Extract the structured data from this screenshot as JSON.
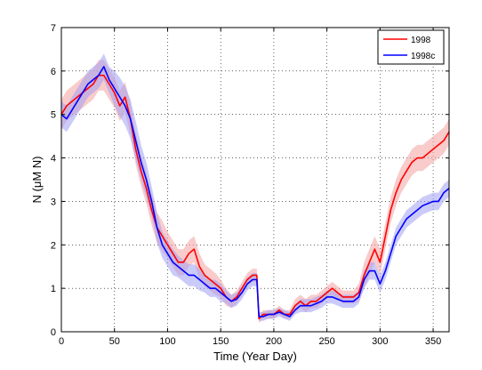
{
  "chart_data": {
    "type": "line",
    "title": "",
    "xlabel": "Time (Year Day)",
    "ylabel": "N (μM N)",
    "xlim": [
      0,
      365
    ],
    "ylim": [
      0,
      7
    ],
    "xticks": [
      "0",
      "50",
      "100",
      "150",
      "200",
      "250",
      "300",
      "350"
    ],
    "yticks": [
      "0",
      "1",
      "2",
      "3",
      "4",
      "5",
      "6",
      "7"
    ],
    "grid": true,
    "legend_position": "top-right",
    "series": [
      {
        "name": "1998",
        "color": "#ff0000",
        "band_color": "#f4a0a0",
        "x": [
          0,
          5,
          10,
          15,
          20,
          25,
          30,
          35,
          40,
          45,
          50,
          55,
          60,
          65,
          70,
          75,
          80,
          85,
          90,
          95,
          100,
          105,
          110,
          115,
          120,
          125,
          130,
          135,
          140,
          145,
          150,
          155,
          160,
          165,
          170,
          175,
          180,
          184,
          186,
          190,
          195,
          200,
          205,
          210,
          215,
          220,
          225,
          230,
          235,
          240,
          245,
          250,
          255,
          260,
          265,
          270,
          275,
          280,
          285,
          290,
          295,
          300,
          305,
          310,
          315,
          320,
          325,
          330,
          335,
          340,
          345,
          350,
          355,
          360,
          365
        ],
        "values": [
          5.0,
          5.2,
          5.3,
          5.4,
          5.5,
          5.6,
          5.7,
          5.9,
          5.9,
          5.7,
          5.5,
          5.2,
          5.4,
          4.9,
          4.2,
          3.7,
          3.3,
          2.8,
          2.4,
          2.2,
          2.0,
          1.8,
          1.6,
          1.6,
          1.8,
          1.9,
          1.5,
          1.3,
          1.2,
          1.1,
          1.0,
          0.8,
          0.7,
          0.8,
          1.0,
          1.2,
          1.3,
          1.3,
          0.3,
          0.4,
          0.4,
          0.4,
          0.5,
          0.4,
          0.4,
          0.6,
          0.7,
          0.6,
          0.7,
          0.7,
          0.8,
          0.9,
          1.0,
          0.9,
          0.8,
          0.8,
          0.8,
          0.9,
          1.3,
          1.6,
          1.9,
          1.6,
          2.2,
          2.8,
          3.2,
          3.5,
          3.7,
          3.9,
          4.0,
          4.0,
          4.1,
          4.2,
          4.3,
          4.4,
          4.6
        ],
        "band": [
          0.35,
          0.35,
          0.35,
          0.35,
          0.35,
          0.35,
          0.35,
          0.35,
          0.35,
          0.35,
          0.35,
          0.35,
          0.35,
          0.35,
          0.35,
          0.35,
          0.35,
          0.35,
          0.35,
          0.35,
          0.3,
          0.3,
          0.3,
          0.3,
          0.3,
          0.3,
          0.3,
          0.25,
          0.25,
          0.25,
          0.2,
          0.2,
          0.15,
          0.15,
          0.15,
          0.15,
          0.15,
          0.15,
          0.1,
          0.1,
          0.1,
          0.1,
          0.1,
          0.1,
          0.1,
          0.15,
          0.15,
          0.15,
          0.15,
          0.15,
          0.15,
          0.15,
          0.15,
          0.15,
          0.15,
          0.15,
          0.15,
          0.2,
          0.3,
          0.3,
          0.3,
          0.3,
          0.3,
          0.3,
          0.3,
          0.3,
          0.3,
          0.3,
          0.3,
          0.3,
          0.3,
          0.3,
          0.3,
          0.3,
          0.3
        ]
      },
      {
        "name": "1998c",
        "color": "#0000ff",
        "band_color": "#a0a0f4",
        "x": [
          0,
          5,
          10,
          15,
          20,
          25,
          30,
          35,
          40,
          45,
          50,
          55,
          60,
          65,
          70,
          75,
          80,
          85,
          90,
          95,
          100,
          105,
          110,
          115,
          120,
          125,
          130,
          135,
          140,
          145,
          150,
          155,
          160,
          165,
          170,
          175,
          180,
          184,
          186,
          190,
          195,
          200,
          205,
          210,
          215,
          220,
          225,
          230,
          235,
          240,
          245,
          250,
          255,
          260,
          265,
          270,
          275,
          280,
          285,
          290,
          295,
          300,
          305,
          310,
          315,
          320,
          325,
          330,
          335,
          340,
          345,
          350,
          355,
          360,
          365
        ],
        "values": [
          5.0,
          4.9,
          5.1,
          5.3,
          5.5,
          5.7,
          5.8,
          5.9,
          6.1,
          5.8,
          5.6,
          5.4,
          5.2,
          4.9,
          4.4,
          3.9,
          3.5,
          3.0,
          2.4,
          2.0,
          1.8,
          1.6,
          1.5,
          1.4,
          1.3,
          1.3,
          1.2,
          1.1,
          1.0,
          1.0,
          0.9,
          0.8,
          0.7,
          0.75,
          0.9,
          1.1,
          1.2,
          1.2,
          0.35,
          0.35,
          0.4,
          0.4,
          0.45,
          0.4,
          0.35,
          0.5,
          0.6,
          0.6,
          0.6,
          0.65,
          0.7,
          0.8,
          0.8,
          0.75,
          0.7,
          0.7,
          0.7,
          0.8,
          1.2,
          1.4,
          1.4,
          1.1,
          1.4,
          1.8,
          2.2,
          2.4,
          2.6,
          2.7,
          2.8,
          2.9,
          2.95,
          3.0,
          3.0,
          3.2,
          3.3
        ],
        "band": [
          0.3,
          0.3,
          0.3,
          0.3,
          0.3,
          0.3,
          0.3,
          0.3,
          0.3,
          0.3,
          0.4,
          0.45,
          0.45,
          0.45,
          0.45,
          0.4,
          0.4,
          0.35,
          0.35,
          0.3,
          0.3,
          0.3,
          0.25,
          0.25,
          0.25,
          0.25,
          0.25,
          0.2,
          0.2,
          0.2,
          0.2,
          0.15,
          0.15,
          0.15,
          0.15,
          0.15,
          0.15,
          0.15,
          0.1,
          0.1,
          0.1,
          0.1,
          0.1,
          0.1,
          0.1,
          0.1,
          0.15,
          0.15,
          0.15,
          0.15,
          0.15,
          0.15,
          0.15,
          0.15,
          0.15,
          0.15,
          0.15,
          0.15,
          0.2,
          0.2,
          0.2,
          0.2,
          0.2,
          0.2,
          0.2,
          0.2,
          0.2,
          0.2,
          0.2,
          0.2,
          0.2,
          0.2,
          0.2,
          0.2,
          0.2
        ]
      }
    ]
  }
}
